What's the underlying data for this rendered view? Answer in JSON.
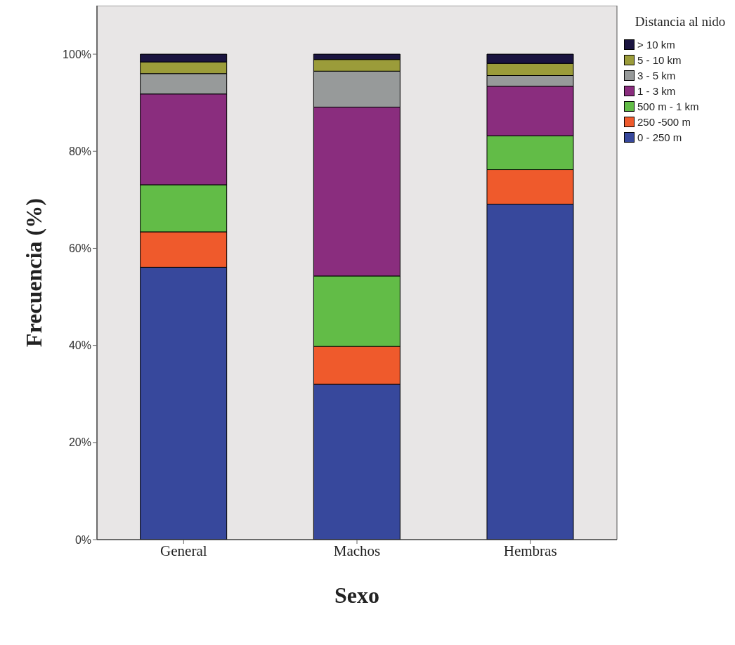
{
  "chart_data": {
    "type": "bar",
    "stacked": true,
    "xlabel": "Sexo",
    "ylabel": "Frecuencia (%)",
    "legend_title": "Distancia al nido",
    "legend": "top right",
    "grid": false,
    "categories": [
      "General",
      "Machos",
      "Hembras"
    ],
    "ylim": [
      0,
      110
    ],
    "yticks": [
      {
        "value": 0,
        "label": "0%"
      },
      {
        "value": 20,
        "label": "20%"
      },
      {
        "value": 40,
        "label": "40%"
      },
      {
        "value": 60,
        "label": "60%"
      },
      {
        "value": 80,
        "label": "80%"
      },
      {
        "value": 100,
        "label": "100%"
      }
    ],
    "series": [
      {
        "name": "0 - 250 m",
        "color": "#37489c",
        "values": [
          56.1,
          32.0,
          69.1
        ]
      },
      {
        "name": "250 -500 m",
        "color": "#ef5a2c",
        "values": [
          7.3,
          7.8,
          7.1
        ]
      },
      {
        "name": "500 m - 1 km",
        "color": "#62bc47",
        "values": [
          9.7,
          14.5,
          7.0
        ]
      },
      {
        "name": "1 - 3 km",
        "color": "#8a2d7e",
        "values": [
          18.7,
          34.8,
          10.2
        ]
      },
      {
        "name": "3 - 5 km",
        "color": "#979a9a",
        "values": [
          4.2,
          7.4,
          2.2
        ]
      },
      {
        "name": "5 - 10 km",
        "color": "#9b9c3a",
        "values": [
          2.4,
          2.4,
          2.5
        ]
      },
      {
        "name": "> 10 km",
        "color": "#1a1440",
        "values": [
          1.6,
          1.1,
          1.9
        ]
      }
    ]
  }
}
